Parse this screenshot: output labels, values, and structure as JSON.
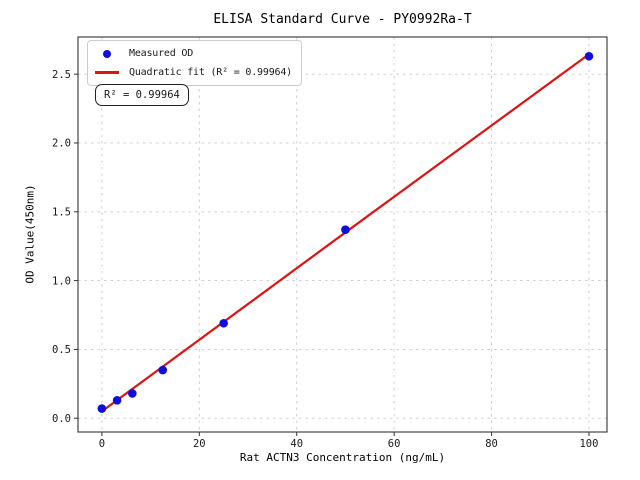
{
  "chart_data": {
    "type": "scatter",
    "title": "ELISA Standard Curve - PY0992Ra-T",
    "xlabel": "Rat ACTN3 Concentration (ng/mL)",
    "ylabel": "OD Value(450nm)",
    "xlim": [
      -4.9,
      103.7
    ],
    "ylim": [
      -0.1,
      2.77
    ],
    "xticks": [
      0,
      20,
      40,
      60,
      80,
      100
    ],
    "xtick_labels": [
      "0",
      "20",
      "40",
      "60",
      "80",
      "100"
    ],
    "yticks": [
      0.0,
      0.5,
      1.0,
      1.5,
      2.0,
      2.5
    ],
    "ytick_labels": [
      "0.0",
      "0.5",
      "1.0",
      "1.5",
      "2.0",
      "2.5"
    ],
    "grid": true,
    "grid_style": "dashed",
    "legend_position": "upper left",
    "annotation": "R² = 0.99964",
    "colors": {
      "points": "#0f0fdc",
      "fit_line": "#dc1414",
      "grid": "#c9c9c9",
      "frame": "#333333",
      "text": "#1a1a1a"
    },
    "series": [
      {
        "name": "Measured OD",
        "kind": "scatter",
        "x": [
          0,
          3.125,
          6.25,
          12.5,
          25,
          50,
          100
        ],
        "y": [
          0.07,
          0.13,
          0.18,
          0.35,
          0.69,
          1.37,
          2.63
        ]
      },
      {
        "name": "Quadratic fit (R² = 0.99964)",
        "kind": "line",
        "x": [
          0,
          50,
          100
        ],
        "y": [
          0.05,
          1.35,
          2.645
        ]
      }
    ]
  }
}
